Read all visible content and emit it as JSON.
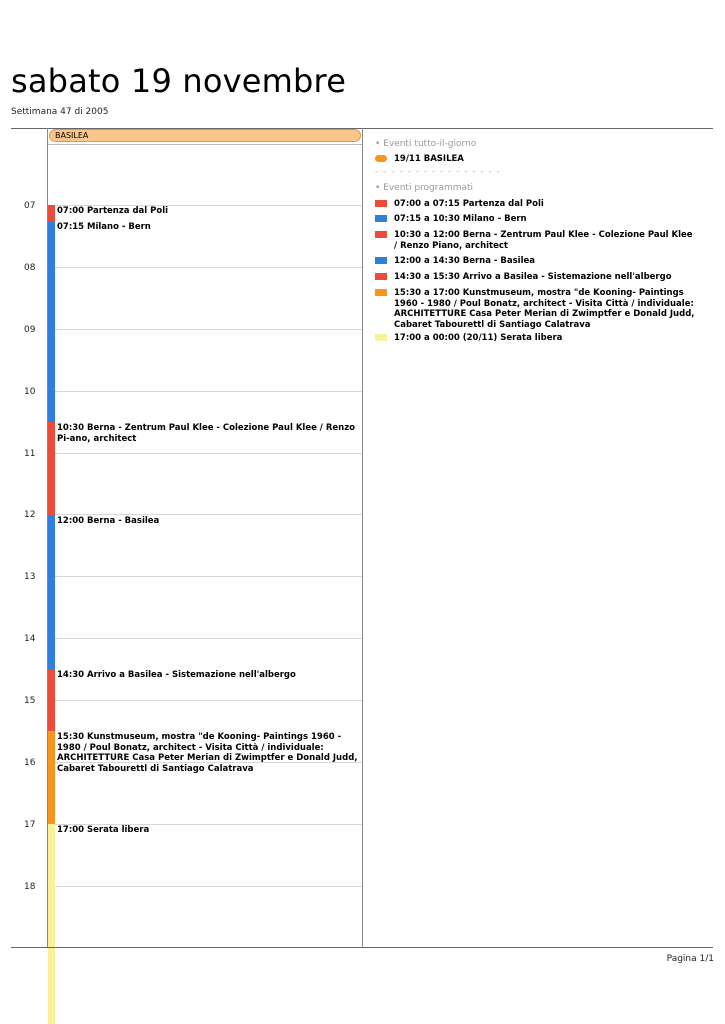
{
  "header": {
    "title": "sabato 19 novembre",
    "subtitle": "Settimana 47 di 2005"
  },
  "allday": {
    "label": "BASILEA"
  },
  "hours": [
    "07",
    "08",
    "09",
    "10",
    "11",
    "12",
    "13",
    "14",
    "15",
    "16",
    "17",
    "18"
  ],
  "colors": {
    "red": "#ec4a3a",
    "blue": "#2f7fe0",
    "orange": "#f7951f",
    "yellow": "#faf19a",
    "allday": "#fbc68a"
  },
  "events": [
    {
      "text": "07:00 Partenza dal Poli",
      "color": "#ec4a3a"
    },
    {
      "text": "07:15 Milano - Bern",
      "color": "#2f7fe0"
    },
    {
      "text": "10:30 Berna - Zentrum Paul Klee - Colezione Paul Klee / Renzo Pi-ano, architect",
      "color": "#ec4a3a"
    },
    {
      "text": "12:00 Berna - Basilea",
      "color": "#2f7fe0"
    },
    {
      "text": "14:30 Arrivo a Basilea - Sistemazione nell'albergo",
      "color": "#ec4a3a"
    },
    {
      "text": "15:30 Kunstmuseum, mostra \"de Kooning- Paintings 1960 - 1980 / Poul Bonatz, architect - Visita Città / individuale: ARCHITETTURE Casa Peter Merian di Zwimptfer e Donald Judd, Cabaret Tabourettl di Santiago Calatrava",
      "color": "#f7951f"
    },
    {
      "text": "17:00 Serata libera",
      "color": "#faf19a"
    }
  ],
  "sidebar": {
    "allday_heading": "• Eventi tutto-il-giorno",
    "allday_items": [
      {
        "text": "19/11 BASILEA",
        "color": "#f7951f"
      }
    ],
    "separator": "- - - - - - - - - - - - - - - -",
    "scheduled_heading": "• Eventi programmati",
    "scheduled_items": [
      {
        "text": "07:00 a 07:15 Partenza dal Poli",
        "color": "#ec4a3a"
      },
      {
        "text": "07:15 a 10:30 Milano - Bern",
        "color": "#2f7fe0"
      },
      {
        "text": "10:30 a 12:00 Berna - Zentrum Paul Klee - Colezione Paul Klee / Renzo Piano, architect",
        "color": "#ec4a3a"
      },
      {
        "text": "12:00 a 14:30 Berna - Basilea",
        "color": "#2f7fe0"
      },
      {
        "text": "14:30 a 15:30 Arrivo a Basilea - Sistemazione nell'albergo",
        "color": "#ec4a3a"
      },
      {
        "text": "15:30 a 17:00 Kunstmuseum, mostra \"de Kooning- Paintings 1960 - 1980 / Poul Bonatz, architect - Visita Città / individuale: ARCHITETTURE Casa Peter Merian di Zwimptfer e Donald Judd, Cabaret Tabourettl di Santiago Calatrava",
        "color": "#f7951f"
      },
      {
        "text": "17:00 a 00:00 (20/11) Serata libera",
        "color": "#faf19a"
      }
    ]
  },
  "footer": {
    "page": "Pagina 1/1"
  }
}
